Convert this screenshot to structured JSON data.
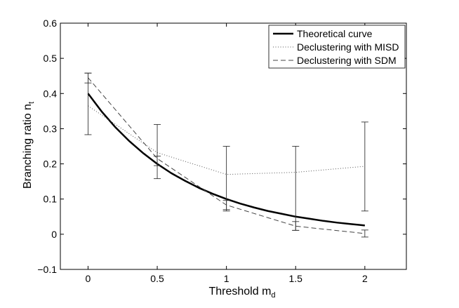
{
  "chart_data": {
    "type": "line",
    "title": "",
    "xlabel": "Threshold m",
    "xlabel_sub": "d",
    "ylabel": "Branching ratio n",
    "ylabel_sub": "t",
    "xlim": [
      -0.2,
      2.3
    ],
    "ylim": [
      -0.1,
      0.6
    ],
    "xticks": [
      0,
      0.5,
      1,
      1.5,
      2
    ],
    "xtick_labels": [
      "0",
      "0.5",
      "1",
      "1.5",
      "2"
    ],
    "yticks": [
      -0.1,
      0,
      0.1,
      0.2,
      0.3,
      0.4,
      0.5,
      0.6
    ],
    "ytick_labels": [
      "−0.1",
      "0",
      "0.1",
      "0.2",
      "0.3",
      "0.4",
      "0.5",
      "0.6"
    ],
    "grid": false,
    "legend_position": "top-right",
    "series": [
      {
        "name": "Theoretical curve",
        "style": "solid-thick",
        "color": "#000000",
        "x": [
          0,
          0.1,
          0.2,
          0.3,
          0.4,
          0.5,
          0.6,
          0.7,
          0.8,
          0.9,
          1.0,
          1.1,
          1.2,
          1.3,
          1.4,
          1.5,
          1.6,
          1.7,
          1.8,
          1.9,
          2.0
        ],
        "values": [
          0.4,
          0.348,
          0.303,
          0.264,
          0.23,
          0.2,
          0.174,
          0.152,
          0.132,
          0.115,
          0.1,
          0.087,
          0.076,
          0.066,
          0.058,
          0.05,
          0.044,
          0.038,
          0.033,
          0.029,
          0.025
        ]
      },
      {
        "name": "Declustering with MISD",
        "style": "dotted",
        "color": "#555555",
        "x": [
          0,
          0.5,
          1.0,
          1.5,
          2.0
        ],
        "values": [
          0.365,
          0.232,
          0.17,
          0.176,
          0.193
        ]
      },
      {
        "name": "Declustering with SDM",
        "style": "dashed",
        "color": "#444444",
        "x": [
          0,
          0.5,
          1.0,
          1.5,
          2.0
        ],
        "values": [
          0.445,
          0.215,
          0.083,
          0.023,
          0.002
        ]
      }
    ],
    "error_bars": [
      {
        "x": 0,
        "low": 0.283,
        "high": 0.458
      },
      {
        "x": 0,
        "low": 0.43,
        "high": 0.458
      },
      {
        "x": 0.5,
        "low": 0.158,
        "high": 0.312
      },
      {
        "x": 0.5,
        "low": 0.195,
        "high": 0.222
      },
      {
        "x": 1.0,
        "low": 0.066,
        "high": 0.25
      },
      {
        "x": 1.0,
        "low": 0.07,
        "high": 0.096
      },
      {
        "x": 1.5,
        "low": 0.011,
        "high": 0.25
      },
      {
        "x": 1.5,
        "low": 0.011,
        "high": 0.036
      },
      {
        "x": 2.0,
        "low": 0.066,
        "high": 0.319
      },
      {
        "x": 2.0,
        "low": -0.008,
        "high": 0.012
      }
    ]
  }
}
